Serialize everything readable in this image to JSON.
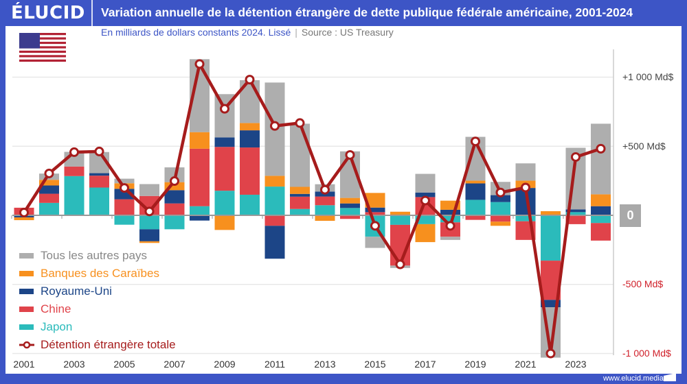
{
  "header": {
    "logo": "ÉLUCID",
    "title": "Variation annuelle de la détention étrangère de dette publique fédérale américaine, 2001-2024"
  },
  "subtitle": {
    "text": "En milliards de dollars constants 2024. Lissé",
    "separator": "|",
    "source": "Source : US Treasury"
  },
  "flag": "us-flag-icon",
  "footer": {
    "url": "www.elucid.media"
  },
  "colors": {
    "autres": "#aeaeae",
    "caraibes": "#f7901e",
    "ru": "#1c4587",
    "chine": "#e0434a",
    "japon": "#2bbbbb",
    "total": "#a61c1c",
    "brand": "#3d55c6"
  },
  "chart_data": {
    "type": "bar",
    "stacked": true,
    "title": "Variation annuelle de la détention étrangère de dette publique fédérale américaine, 2001-2024",
    "categories": [
      2001,
      2002,
      2003,
      2004,
      2005,
      2006,
      2007,
      2008,
      2009,
      2010,
      2011,
      2012,
      2013,
      2014,
      2015,
      2016,
      2017,
      2018,
      2019,
      2020,
      2021,
      2022,
      2023,
      2024
    ],
    "x_tick_labels": [
      "2001",
      "2003",
      "2005",
      "2007",
      "2009",
      "2011",
      "2013",
      "2015",
      "2017",
      "2019",
      "2021",
      "2023"
    ],
    "y_tick_labels": {
      "p1000": "+1 000 Md$",
      "p500": "+500 Md$",
      "zero": "0",
      "m500": "-500 Md$",
      "m1000": "-1 000 Md$"
    },
    "ylim": [
      -1000,
      1200
    ],
    "grid": true,
    "legend_position": "bottom-left",
    "series": [
      {
        "name": "Japon",
        "color_key": "japon",
        "values": [
          0,
          90,
          284,
          201,
          -68,
          -101,
          -101,
          66,
          178,
          149,
          208,
          46,
          73,
          53,
          -155,
          -69,
          -64,
          -51,
          112,
          96,
          -43,
          -328,
          23,
          -56
        ]
      },
      {
        "name": "Chine",
        "color_key": "chine",
        "values": [
          55,
          66,
          69,
          86,
          116,
          140,
          86,
          416,
          317,
          342,
          -76,
          89,
          63,
          -26,
          23,
          -295,
          132,
          -104,
          -33,
          -46,
          -135,
          -284,
          -64,
          -127
        ]
      },
      {
        "name": "Royaume-Uni",
        "color_key": "ru",
        "values": [
          -15,
          60,
          0,
          18,
          76,
          -87,
          96,
          -38,
          69,
          124,
          -238,
          20,
          36,
          33,
          33,
          0,
          33,
          40,
          119,
          50,
          198,
          -53,
          20,
          66
        ]
      },
      {
        "name": "Banques des Caraïbes",
        "color_key": "caraibes",
        "values": [
          -20,
          41,
          -3,
          0,
          40,
          -12,
          58,
          120,
          -106,
          53,
          78,
          51,
          -40,
          40,
          106,
          26,
          -130,
          66,
          20,
          -30,
          53,
          30,
          0,
          86
        ]
      },
      {
        "name": "Tous les autres pays",
        "color_key": "autres",
        "values": [
          0,
          45,
          106,
          153,
          33,
          86,
          107,
          528,
          313,
          310,
          675,
          457,
          53,
          337,
          -81,
          -17,
          135,
          -23,
          317,
          96,
          125,
          -365,
          446,
          511
        ]
      }
    ],
    "line": {
      "name": "Détention étrangère totale",
      "color_key": "total",
      "values": [
        20,
        303,
        457,
        462,
        198,
        28,
        248,
        1095,
        771,
        982,
        647,
        668,
        185,
        437,
        -76,
        -355,
        107,
        -76,
        535,
        165,
        201,
        -1000,
        422,
        482
      ]
    },
    "legend": [
      "Tous les autres pays",
      "Banques des Caraïbes",
      "Royaume-Uni",
      "Chine",
      "Japon",
      "Détention étrangère totale"
    ]
  }
}
